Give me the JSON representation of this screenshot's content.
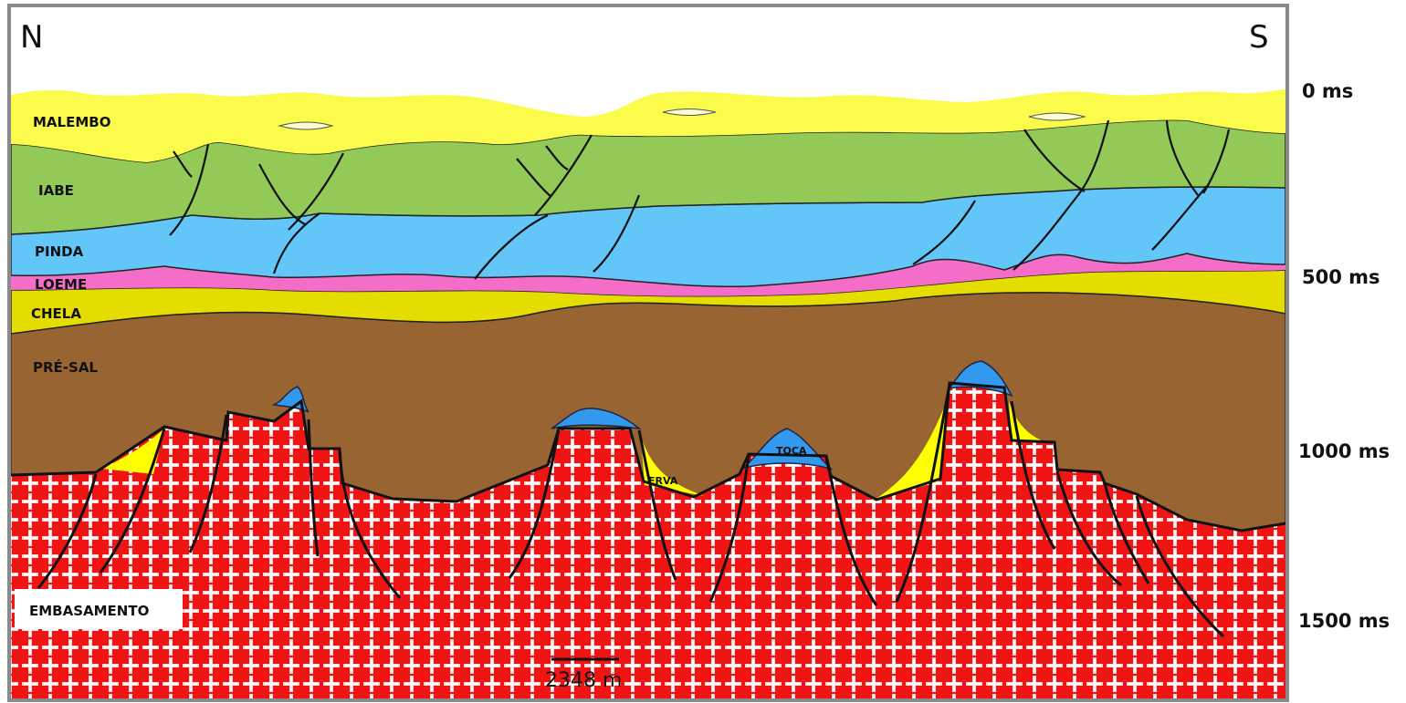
{
  "orientation": {
    "left": "N",
    "right": "S"
  },
  "time_axis": [
    "0 ms",
    "500 ms",
    "1000 ms",
    "1500 ms"
  ],
  "units": [
    {
      "name": "MALEMBO",
      "color": "#fbfb4c"
    },
    {
      "name": "IABE",
      "color": "#92c957"
    },
    {
      "name": "PINDA",
      "color": "#62c6f9"
    },
    {
      "name": "LOEME",
      "color": "#f46dc9"
    },
    {
      "name": "CHELA",
      "color": "#e5dc00"
    },
    {
      "name": "PRÉ-SAL",
      "color": "#986532"
    },
    {
      "name": "EMBASAMENTO",
      "color": "#f01414"
    }
  ],
  "features": {
    "erva": "ERVA",
    "toca": "TOCA"
  },
  "scale_bar": {
    "label": "2348 m"
  }
}
